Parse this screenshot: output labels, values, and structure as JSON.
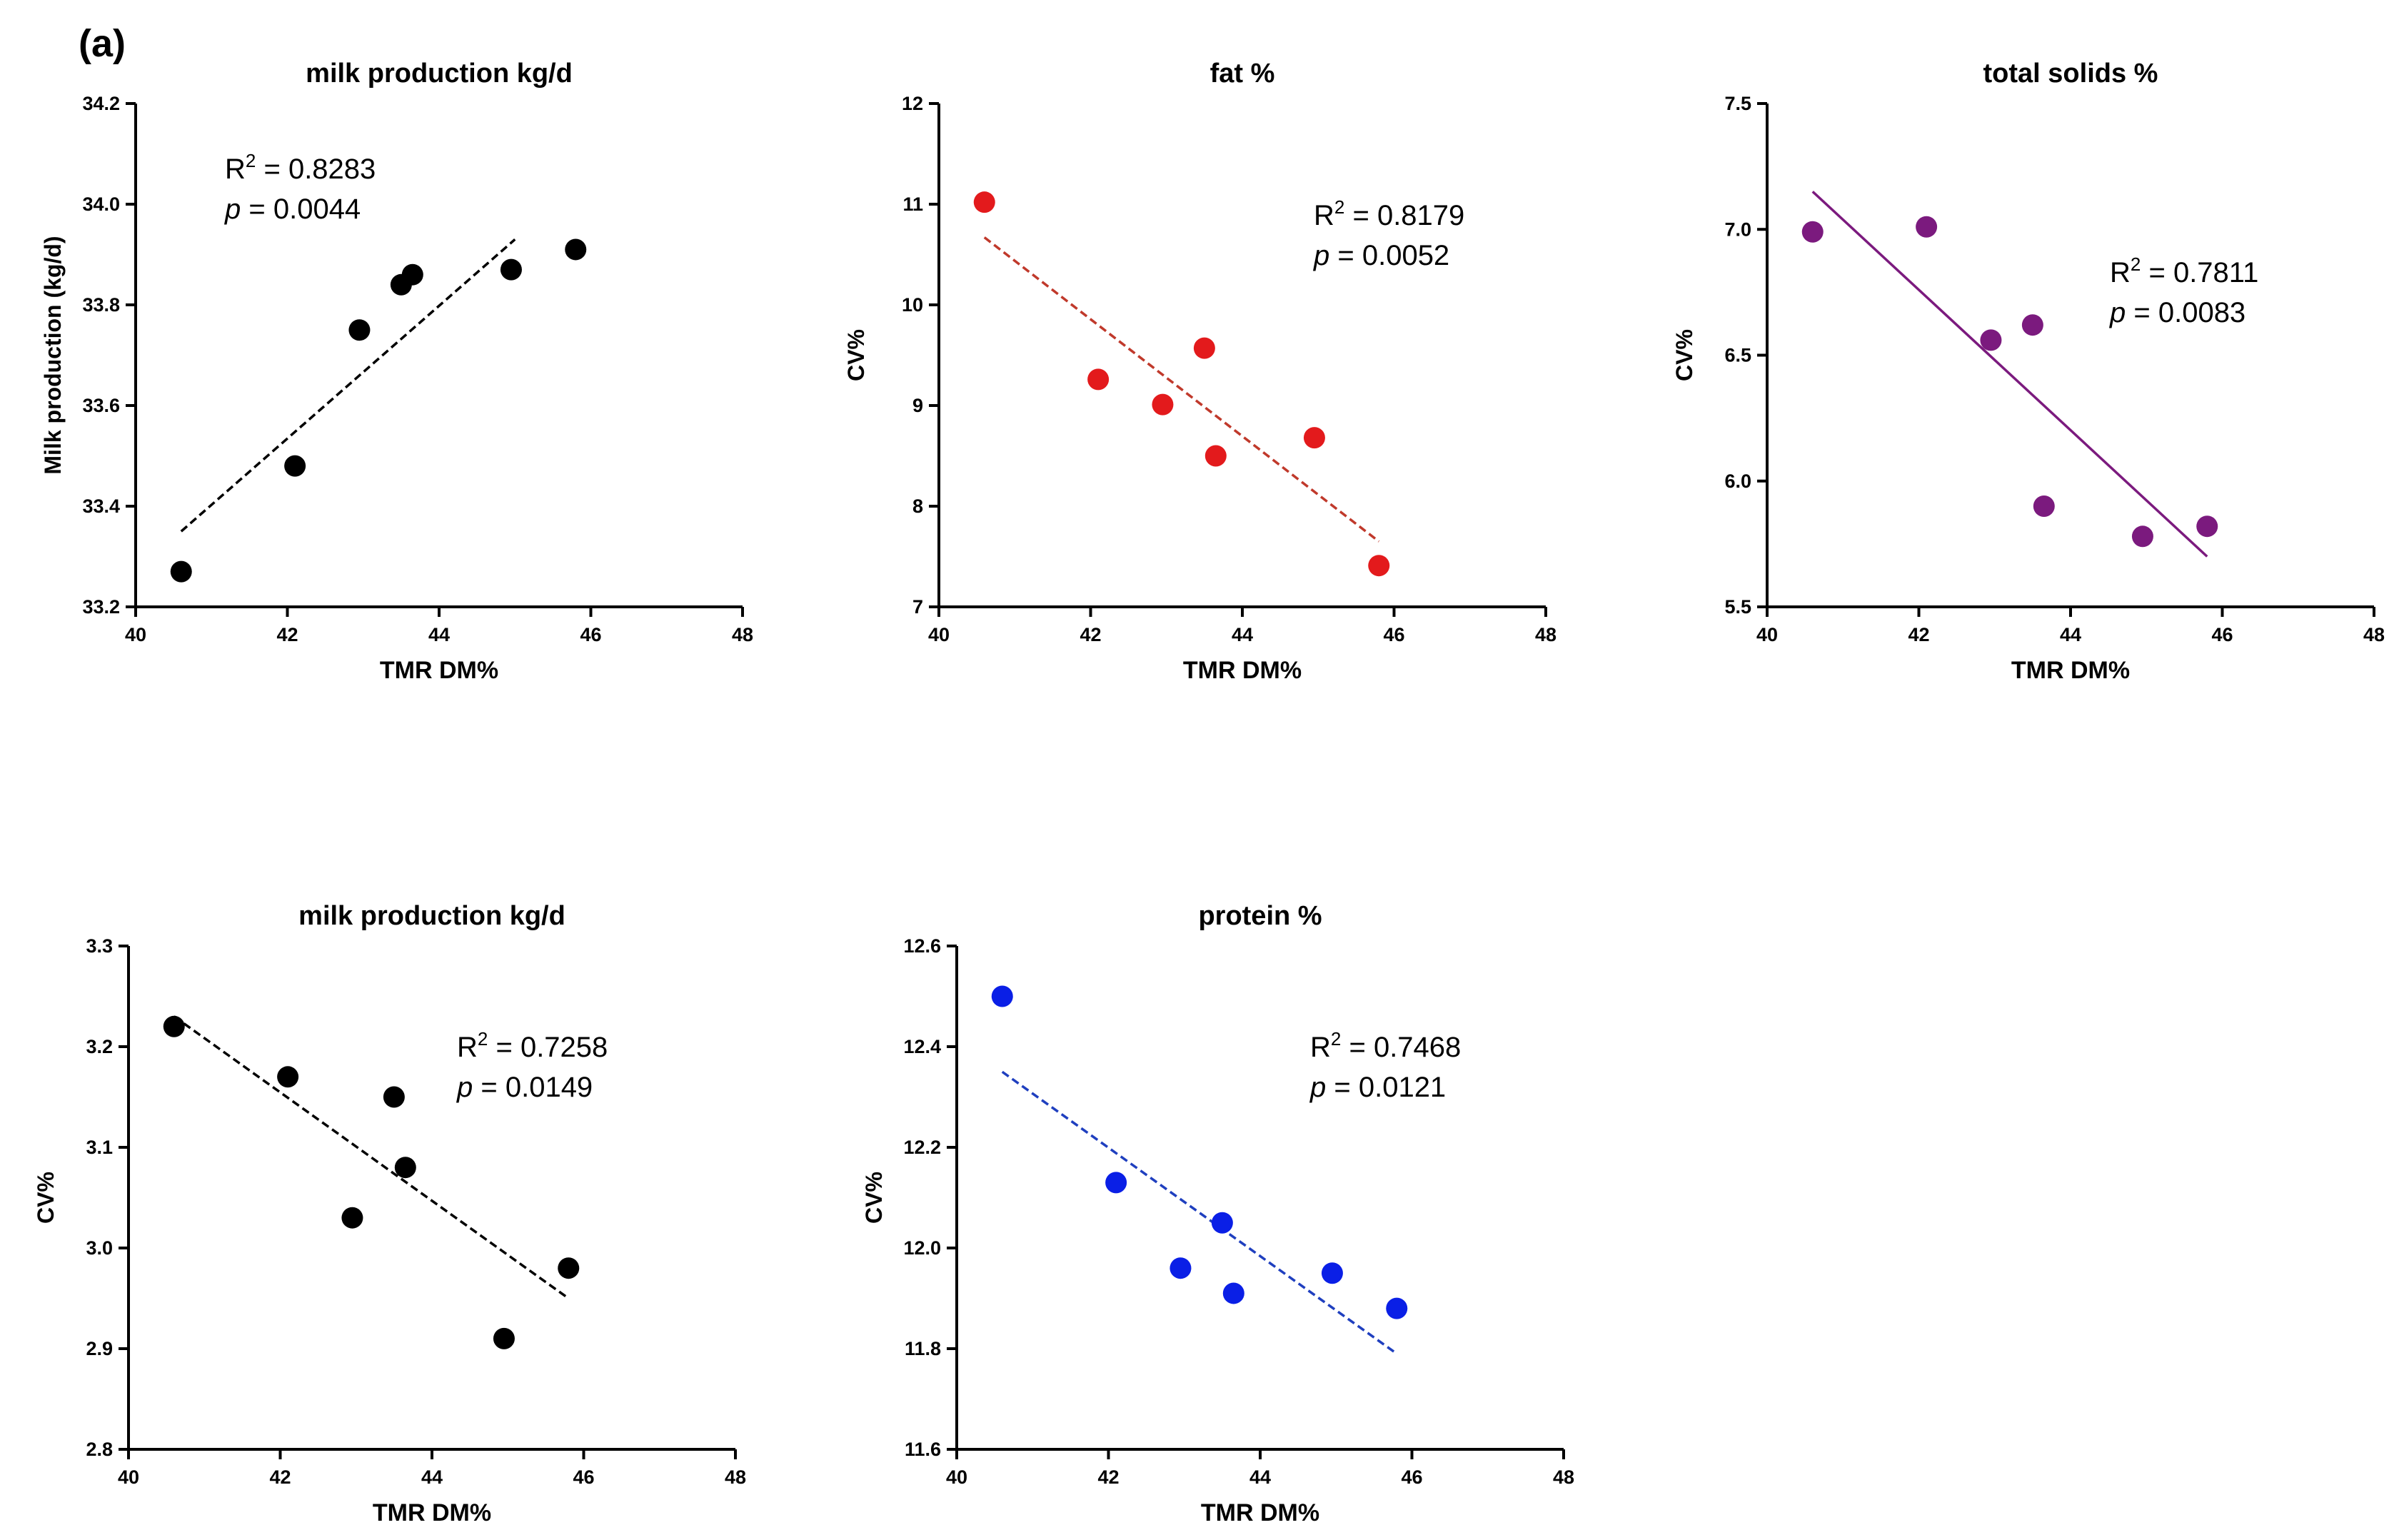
{
  "figure_label": "(a)",
  "chart_data": [
    {
      "type": "scatter",
      "title": "milk production kg/d",
      "xlabel": "TMR DM%",
      "ylabel": "Milk production (kg/d)",
      "xlim": [
        40,
        48
      ],
      "ylim": [
        33.2,
        34.2
      ],
      "xticks": [
        "40",
        "42",
        "44",
        "46",
        "48"
      ],
      "yticks": [
        "33.2",
        "33.4",
        "33.6",
        "33.8",
        "34.0",
        "34.2"
      ],
      "x": [
        40.6,
        42.1,
        42.95,
        43.5,
        43.65,
        44.95,
        45.8
      ],
      "y": [
        33.27,
        33.48,
        33.75,
        33.84,
        33.86,
        33.87,
        33.91
      ],
      "fit": {
        "x": [
          40.6,
          45.0
        ],
        "y": [
          33.35,
          33.93
        ],
        "style": "dashed"
      },
      "annotation": {
        "r2_label": "R",
        "r2_sup": "2",
        "r2_value": " = 0.8283",
        "p_label": "p",
        "p_value": " = 0.0044"
      },
      "colors": {
        "point": "#000000",
        "line": "#000000"
      }
    },
    {
      "type": "scatter",
      "title": "fat %",
      "xlabel": "TMR DM%",
      "ylabel": "CV%",
      "xlim": [
        40,
        48
      ],
      "ylim": [
        7,
        12
      ],
      "xticks": [
        "40",
        "42",
        "44",
        "46",
        "48"
      ],
      "yticks": [
        "7",
        "8",
        "9",
        "10",
        "11",
        "12"
      ],
      "x": [
        40.6,
        42.1,
        42.95,
        43.5,
        43.65,
        44.95,
        45.8
      ],
      "y": [
        11.02,
        9.26,
        9.01,
        9.57,
        8.5,
        8.68,
        7.41
      ],
      "fit": {
        "x": [
          40.6,
          45.8
        ],
        "y": [
          10.67,
          7.65
        ],
        "style": "dashed"
      },
      "annotation": {
        "r2_label": "R",
        "r2_sup": "2",
        "r2_value": " = 0.8179",
        "p_label": "p",
        "p_value": " = 0.0052"
      },
      "colors": {
        "point": "#e31a1c",
        "line": "#c0392b"
      }
    },
    {
      "type": "scatter",
      "title": "total solids %",
      "xlabel": "TMR DM%",
      "ylabel": "CV%",
      "xlim": [
        40,
        48
      ],
      "ylim": [
        5.5,
        7.5
      ],
      "xticks": [
        "40",
        "42",
        "44",
        "46",
        "48"
      ],
      "yticks": [
        "5.5",
        "6.0",
        "6.5",
        "7.0",
        "7.5"
      ],
      "x": [
        40.6,
        42.1,
        42.95,
        43.5,
        43.65,
        44.95,
        45.8
      ],
      "y": [
        6.99,
        7.01,
        6.56,
        6.62,
        5.9,
        5.78,
        5.82
      ],
      "fit": {
        "x": [
          40.6,
          45.8
        ],
        "y": [
          7.15,
          5.7
        ],
        "style": "solid"
      },
      "annotation": {
        "r2_label": "R",
        "r2_sup": "2",
        "r2_value": " = 0.7811",
        "p_label": "p",
        "p_value": " = 0.0083"
      },
      "colors": {
        "point": "#7b1a7e",
        "line": "#7b1a7e"
      }
    },
    {
      "type": "scatter",
      "title": "milk production kg/d",
      "xlabel": "TMR DM%",
      "ylabel": "CV%",
      "xlim": [
        40,
        48
      ],
      "ylim": [
        2.8,
        3.3
      ],
      "xticks": [
        "40",
        "42",
        "44",
        "46",
        "48"
      ],
      "yticks": [
        "2.8",
        "2.9",
        "3.0",
        "3.1",
        "3.2",
        "3.3"
      ],
      "x": [
        40.6,
        42.1,
        42.95,
        43.5,
        43.65,
        44.95,
        45.8
      ],
      "y": [
        3.22,
        3.17,
        3.03,
        3.15,
        3.08,
        2.91,
        2.98
      ],
      "fit": {
        "x": [
          40.6,
          45.8
        ],
        "y": [
          3.23,
          2.95
        ],
        "style": "dashed"
      },
      "annotation": {
        "r2_label": "R",
        "r2_sup": "2",
        "r2_value": " = 0.7258",
        "p_label": "p",
        "p_value": " = 0.0149"
      },
      "colors": {
        "point": "#000000",
        "line": "#000000"
      }
    },
    {
      "type": "scatter",
      "title": "protein %",
      "xlabel": "TMR DM%",
      "ylabel": "CV%",
      "xlim": [
        40,
        48
      ],
      "ylim": [
        11.6,
        12.6
      ],
      "xticks": [
        "40",
        "42",
        "44",
        "46",
        "48"
      ],
      "yticks": [
        "11.6",
        "11.8",
        "12.0",
        "12.2",
        "12.4",
        "12.6"
      ],
      "x": [
        40.6,
        42.1,
        42.95,
        43.5,
        43.65,
        44.95,
        45.8
      ],
      "y": [
        12.5,
        12.13,
        11.96,
        12.05,
        11.91,
        11.95,
        11.88
      ],
      "fit": {
        "x": [
          40.6,
          45.8
        ],
        "y": [
          12.35,
          11.79
        ],
        "style": "dashed"
      },
      "annotation": {
        "r2_label": "R",
        "r2_sup": "2",
        "r2_value": " = 0.7468",
        "p_label": "p",
        "p_value": " = 0.0121"
      },
      "colors": {
        "point": "#0a1fe6",
        "line": "#1f3fbf"
      }
    }
  ]
}
